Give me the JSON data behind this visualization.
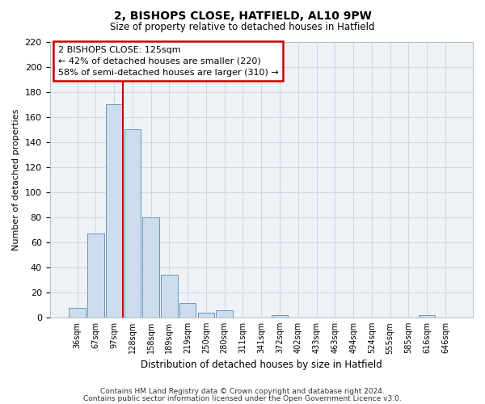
{
  "title": "2, BISHOPS CLOSE, HATFIELD, AL10 9PW",
  "subtitle": "Size of property relative to detached houses in Hatfield",
  "xlabel": "Distribution of detached houses by size in Hatfield",
  "ylabel": "Number of detached properties",
  "bin_labels": [
    "36sqm",
    "67sqm",
    "97sqm",
    "128sqm",
    "158sqm",
    "189sqm",
    "219sqm",
    "250sqm",
    "280sqm",
    "311sqm",
    "341sqm",
    "372sqm",
    "402sqm",
    "433sqm",
    "463sqm",
    "494sqm",
    "524sqm",
    "555sqm",
    "585sqm",
    "616sqm",
    "646sqm"
  ],
  "bin_values": [
    8,
    67,
    170,
    150,
    80,
    34,
    12,
    4,
    6,
    0,
    0,
    2,
    0,
    0,
    0,
    0,
    0,
    0,
    0,
    2,
    0
  ],
  "bar_color": "#ccdcec",
  "bar_edge_color": "#6699bb",
  "bar_width": 0.9,
  "vline_x": 2.5,
  "vline_color": "#cc0000",
  "ylim": [
    0,
    220
  ],
  "yticks": [
    0,
    20,
    40,
    60,
    80,
    100,
    120,
    140,
    160,
    180,
    200,
    220
  ],
  "annotation_title": "2 BISHOPS CLOSE: 125sqm",
  "annotation_line1": "← 42% of detached houses are smaller (220)",
  "annotation_line2": "58% of semi-detached houses are larger (310) →",
  "annotation_box_color": "#cc0000",
  "footer_line1": "Contains HM Land Registry data © Crown copyright and database right 2024.",
  "footer_line2": "Contains public sector information licensed under the Open Government Licence v3.0.",
  "background_color": "#ffffff",
  "plot_bg_color": "#eef2f6",
  "grid_color": "#d0d8e4"
}
